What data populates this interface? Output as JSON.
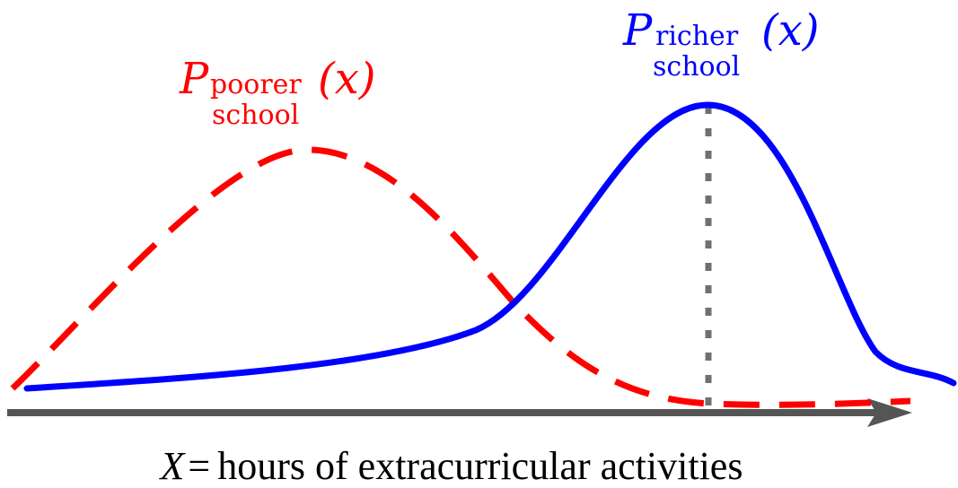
{
  "curves": {
    "poorer": {
      "symbol": "P",
      "subscript_top": "poorer",
      "subscript_bottom": "school",
      "argument": "(x)",
      "color": "#ff0000",
      "style": "dashed"
    },
    "richer": {
      "symbol": "P",
      "subscript_top": "richer",
      "subscript_bottom": "school",
      "argument": "(x)",
      "color": "#0000ff",
      "style": "solid"
    }
  },
  "axis": {
    "variable": "X",
    "equals": "=",
    "description": "hours of extracurricular activities",
    "color": "#555555"
  },
  "mode_marker": {
    "style": "dotted",
    "color": "#707070"
  }
}
